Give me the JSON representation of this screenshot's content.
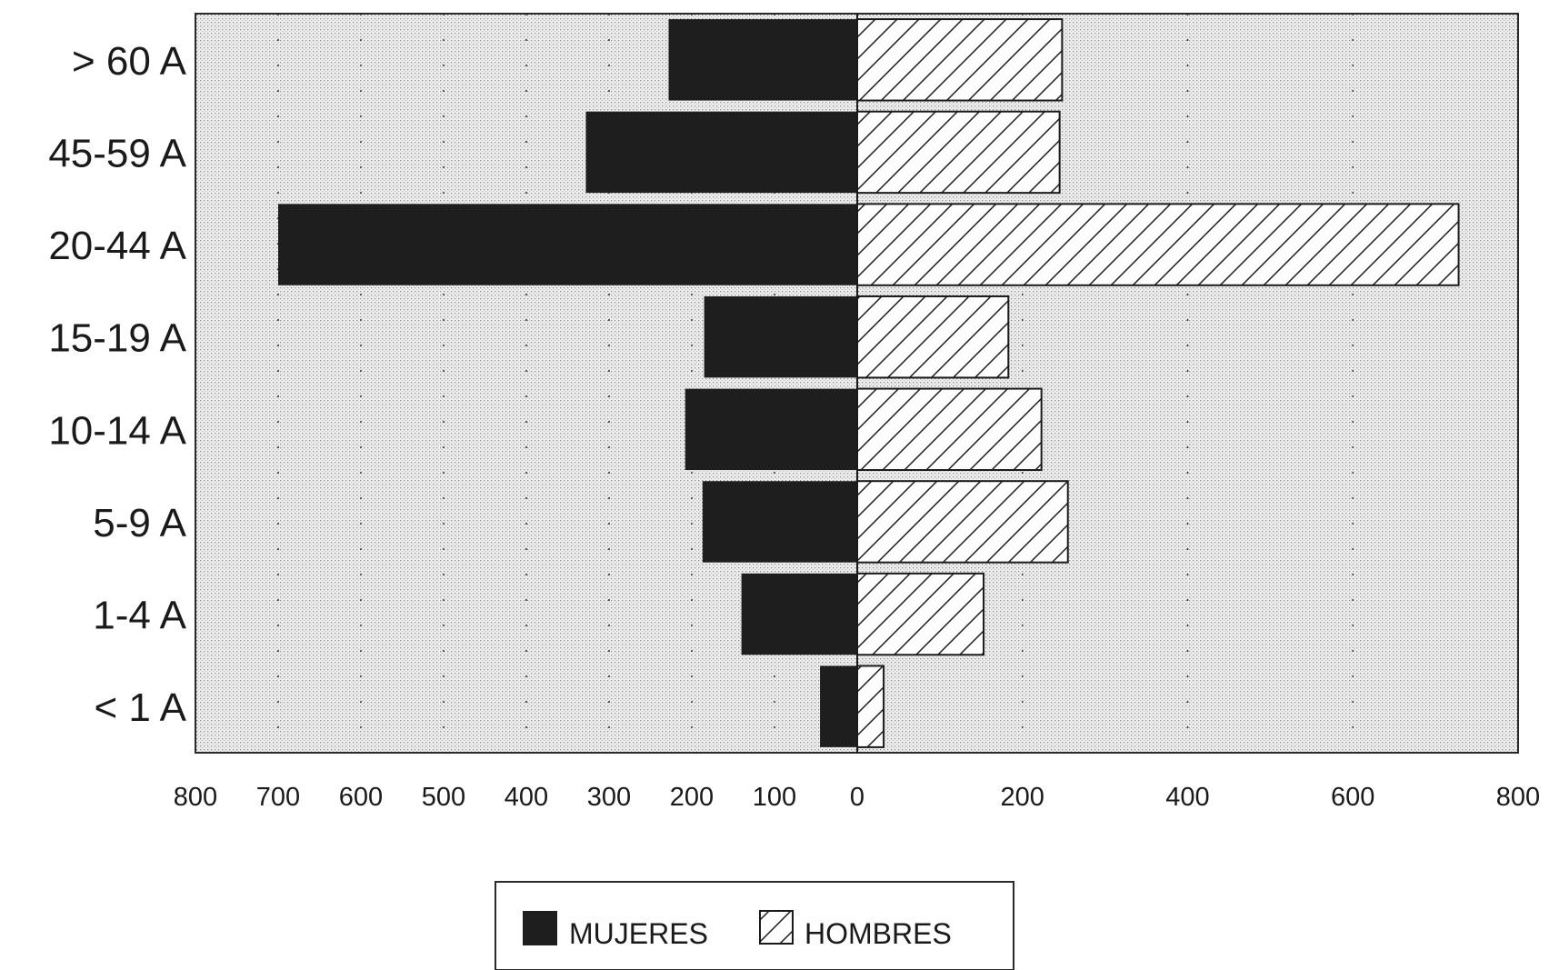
{
  "chart_data": {
    "type": "bar",
    "orientation": "horizontal",
    "layout": "population-pyramid",
    "categories": [
      "> 60 A",
      "45-59 A",
      "20-44 A",
      "15-19 A",
      "10-14 A",
      "5-9 A",
      "1-4 A",
      "< 1 A"
    ],
    "series": [
      {
        "name": "MUJERES",
        "side": "left",
        "fill": "solid",
        "color": "#1e1e1e",
        "values": [
          228,
          328,
          700,
          185,
          208,
          187,
          140,
          45
        ]
      },
      {
        "name": "HOMBRES",
        "side": "right",
        "fill": "hatched",
        "color": "#ffffff",
        "values": [
          248,
          245,
          728,
          183,
          223,
          255,
          153,
          32
        ]
      }
    ],
    "xlim_left": [
      800,
      0
    ],
    "xlim_right": [
      0,
      800
    ],
    "x_ticks_left": [
      "800",
      "700",
      "600",
      "500",
      "400",
      "300",
      "200",
      "100",
      "0"
    ],
    "x_ticks_right": [
      "200",
      "400",
      "600",
      "800"
    ],
    "title": "",
    "xlabel": "",
    "ylabel": "",
    "grid": true,
    "legend": {
      "position": "bottom-center",
      "entries": [
        "MUJERES",
        "HOMBRES"
      ]
    },
    "plot_background": "#dcdcdc"
  }
}
